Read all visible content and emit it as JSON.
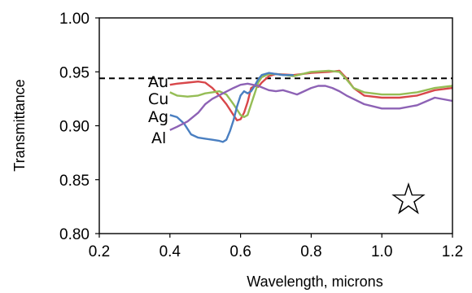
{
  "chart_data": {
    "type": "line",
    "title": "",
    "xlabel": "Wavelength, microns",
    "ylabel": "Transmittance",
    "xlim": [
      0.2,
      1.2
    ],
    "ylim": [
      0.8,
      1.0
    ],
    "xticks": [
      "0.2",
      "0.4",
      "0.6",
      "0.8",
      "1.0",
      "1.2"
    ],
    "yticks": [
      "0.80",
      "0.85",
      "0.90",
      "0.95",
      "1.00"
    ],
    "grid": false,
    "legend": "none",
    "series": [
      {
        "name": "Au",
        "color": "#d8474a",
        "x": [
          0.4,
          0.42,
          0.45,
          0.48,
          0.5,
          0.52,
          0.54,
          0.56,
          0.58,
          0.59,
          0.6,
          0.61,
          0.62,
          0.63,
          0.64,
          0.65,
          0.66,
          0.68,
          0.7,
          0.75,
          0.8,
          0.85,
          0.88,
          0.9,
          0.92,
          0.95,
          1.0,
          1.05,
          1.1,
          1.15,
          1.2
        ],
        "y": [
          0.938,
          0.939,
          0.94,
          0.941,
          0.94,
          0.935,
          0.928,
          0.92,
          0.91,
          0.905,
          0.906,
          0.912,
          0.922,
          0.935,
          0.937,
          0.936,
          0.94,
          0.946,
          0.948,
          0.947,
          0.949,
          0.95,
          0.951,
          0.944,
          0.935,
          0.928,
          0.926,
          0.926,
          0.928,
          0.933,
          0.935
        ]
      },
      {
        "name": "Cu",
        "color": "#95bd55",
        "x": [
          0.4,
          0.42,
          0.45,
          0.48,
          0.5,
          0.52,
          0.54,
          0.56,
          0.58,
          0.6,
          0.61,
          0.62,
          0.63,
          0.64,
          0.65,
          0.66,
          0.68,
          0.7,
          0.75,
          0.8,
          0.85,
          0.88,
          0.9,
          0.92,
          0.95,
          1.0,
          1.05,
          1.1,
          1.15,
          1.2
        ],
        "y": [
          0.931,
          0.928,
          0.927,
          0.928,
          0.93,
          0.931,
          0.932,
          0.929,
          0.92,
          0.91,
          0.908,
          0.91,
          0.92,
          0.93,
          0.94,
          0.945,
          0.948,
          0.948,
          0.946,
          0.95,
          0.951,
          0.95,
          0.943,
          0.935,
          0.931,
          0.929,
          0.929,
          0.931,
          0.935,
          0.937
        ]
      },
      {
        "name": "Ag",
        "color": "#4a7fc1",
        "x": [
          0.4,
          0.42,
          0.44,
          0.46,
          0.48,
          0.5,
          0.52,
          0.54,
          0.55,
          0.56,
          0.57,
          0.58,
          0.59,
          0.6,
          0.61,
          0.62,
          0.63,
          0.64,
          0.65,
          0.66,
          0.67,
          0.68,
          0.7,
          0.72,
          0.75
        ],
        "y": [
          0.91,
          0.908,
          0.902,
          0.892,
          0.889,
          0.888,
          0.887,
          0.886,
          0.885,
          0.887,
          0.895,
          0.905,
          0.918,
          0.928,
          0.932,
          0.93,
          0.932,
          0.937,
          0.943,
          0.947,
          0.948,
          0.949,
          0.948,
          0.947,
          0.947
        ]
      },
      {
        "name": "Al",
        "color": "#8d62b5",
        "x": [
          0.4,
          0.42,
          0.45,
          0.48,
          0.5,
          0.52,
          0.55,
          0.58,
          0.6,
          0.62,
          0.65,
          0.68,
          0.7,
          0.72,
          0.74,
          0.76,
          0.78,
          0.8,
          0.82,
          0.84,
          0.86,
          0.88,
          0.9,
          0.95,
          1.0,
          1.05,
          1.1,
          1.15,
          1.2
        ],
        "y": [
          0.896,
          0.899,
          0.904,
          0.912,
          0.92,
          0.925,
          0.93,
          0.935,
          0.938,
          0.939,
          0.937,
          0.933,
          0.932,
          0.933,
          0.931,
          0.929,
          0.932,
          0.935,
          0.937,
          0.937,
          0.935,
          0.932,
          0.928,
          0.92,
          0.916,
          0.916,
          0.919,
          0.926,
          0.923
        ]
      }
    ],
    "reference_line": {
      "y": 0.944,
      "style": "dashed",
      "color": "#000000"
    }
  },
  "annotation": {
    "symbol": "☆"
  }
}
